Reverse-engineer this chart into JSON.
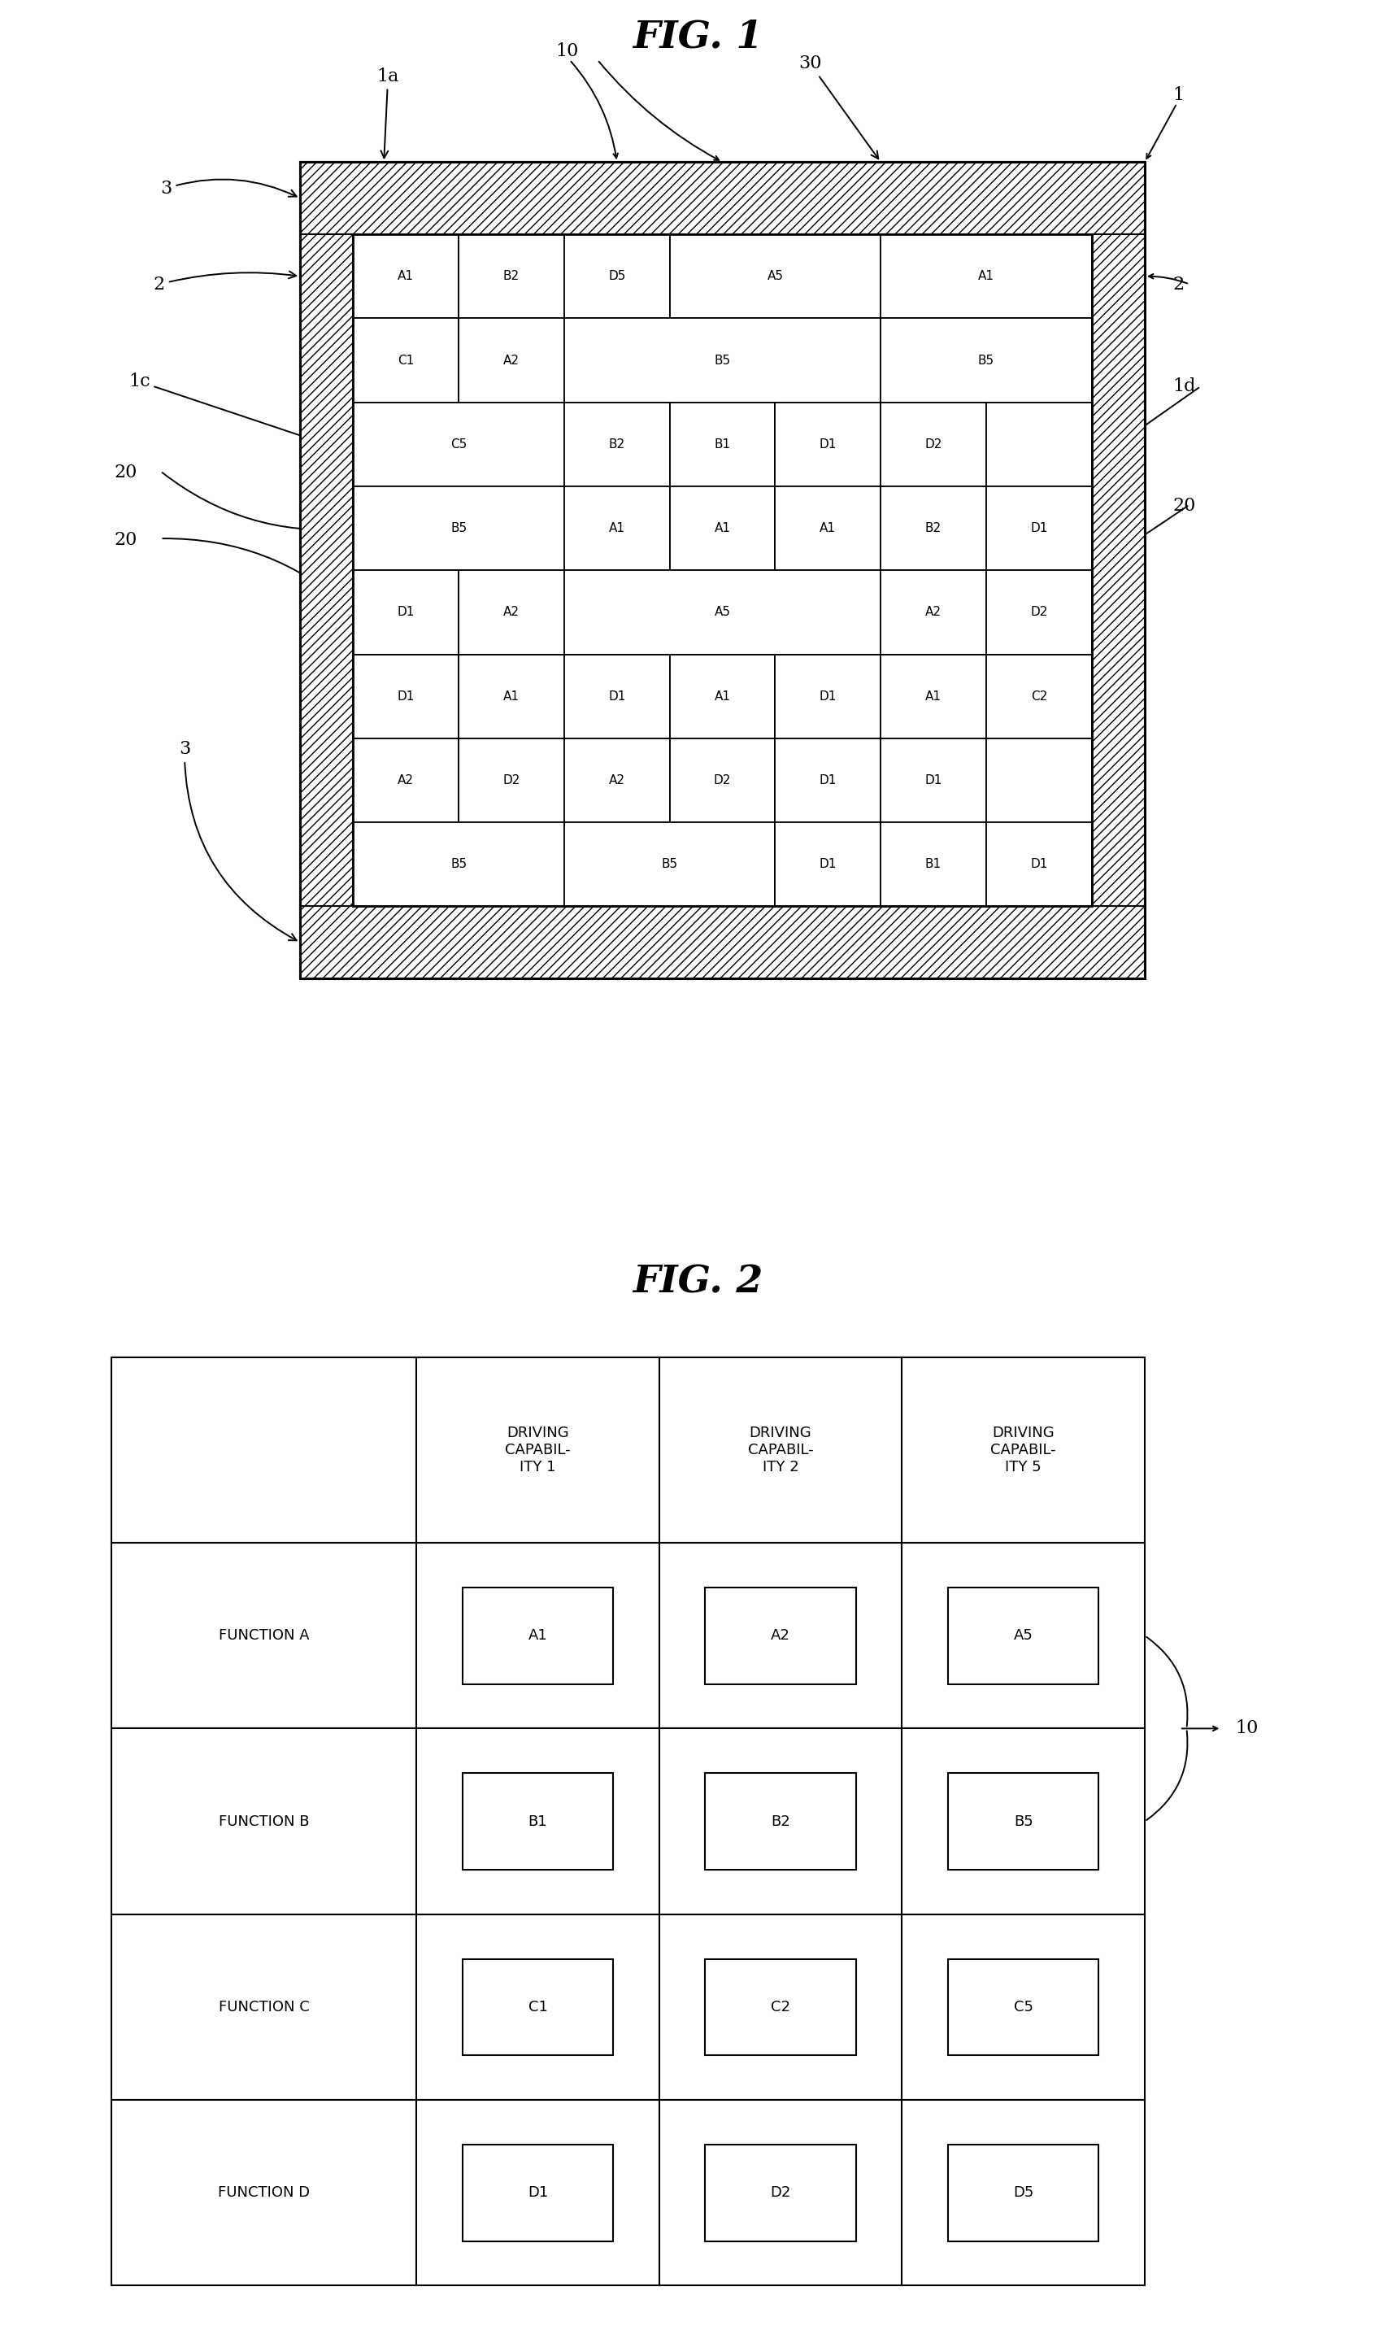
{
  "fig1_title": "FIG. 1",
  "fig2_title": "FIG. 2",
  "rows_data": [
    [
      [
        "A1",
        1
      ],
      [
        "B2",
        1
      ],
      [
        "D5",
        1
      ],
      [
        "A5",
        2
      ],
      [
        "A1",
        2
      ]
    ],
    [
      [
        "C1",
        1
      ],
      [
        "A2",
        1
      ],
      [
        "B5",
        3
      ],
      [
        "B5",
        2
      ]
    ],
    [
      [
        "C5",
        2
      ],
      [
        "B2",
        1
      ],
      [
        "B1",
        1
      ],
      [
        "D1",
        1
      ],
      [
        "D2",
        1
      ],
      [
        "",
        1
      ]
    ],
    [
      [
        "B5",
        2
      ],
      [
        "A1",
        1
      ],
      [
        "A1",
        1
      ],
      [
        "A1",
        1
      ],
      [
        "B2",
        1
      ],
      [
        "D1",
        1
      ]
    ],
    [
      [
        "D1",
        1
      ],
      [
        "A2",
        1
      ],
      [
        "A5",
        3
      ],
      [
        "A2",
        1
      ],
      [
        "D2",
        1
      ]
    ],
    [
      [
        "D1",
        1
      ],
      [
        "A1",
        1
      ],
      [
        "D1",
        1
      ],
      [
        "A1",
        1
      ],
      [
        "D1",
        1
      ],
      [
        "A1",
        1
      ],
      [
        "C2",
        1
      ]
    ],
    [
      [
        "A2",
        2
      ],
      [
        "D2",
        2
      ],
      [
        "D1",
        1
      ],
      [
        "D1",
        2
      ]
    ],
    [
      [
        "B5",
        2
      ],
      [
        "B5",
        2
      ],
      [
        "D1",
        1
      ],
      [
        "B1",
        1
      ],
      [
        "D1",
        1
      ]
    ]
  ],
  "table_headers": [
    "",
    "DRIVING\nCAPABIL-\nITY 1",
    "DRIVING\nCAPABIL-\nITY 2",
    "DRIVING\nCAPABIL-\nITY 5"
  ],
  "table_rows": [
    [
      "FUNCTION A",
      "A1",
      "A2",
      "A5"
    ],
    [
      "FUNCTION B",
      "B1",
      "B2",
      "B5"
    ],
    [
      "FUNCTION C",
      "C1",
      "C2",
      "C5"
    ],
    [
      "FUNCTION D",
      "D1",
      "D2",
      "D5"
    ]
  ],
  "background_color": "#ffffff"
}
